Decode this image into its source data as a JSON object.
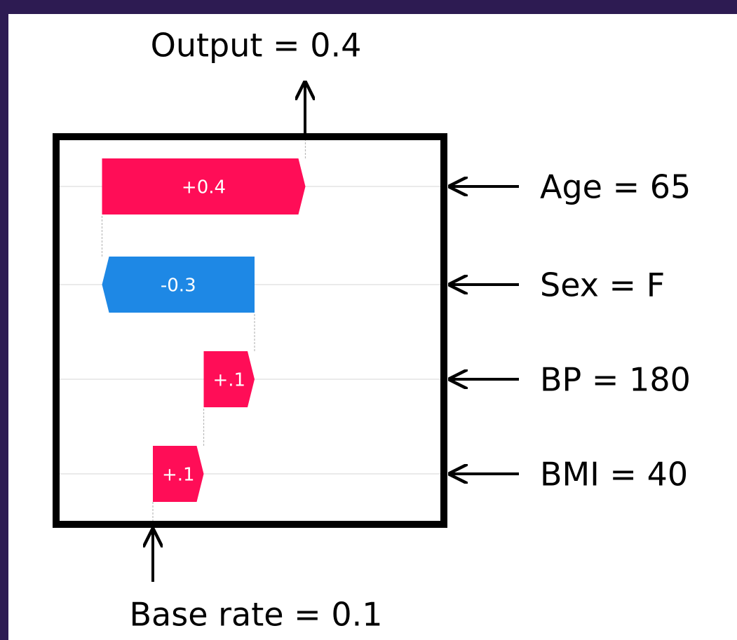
{
  "chart_data": {
    "type": "waterfall",
    "output_label": "Output = 0.4",
    "base_label": "Base rate = 0.1",
    "base_value": 0.1,
    "categories": [
      "Age = 65",
      "Sex = F",
      "BP = 180",
      "BMI = 40"
    ],
    "values": [
      0.4,
      -0.3,
      0.1,
      0.1
    ],
    "value_labels": [
      "+0.4",
      "-0.3",
      "+.1",
      "+.1"
    ],
    "positive_color": "#ff0d57",
    "negative_color": "#1e88e5"
  }
}
